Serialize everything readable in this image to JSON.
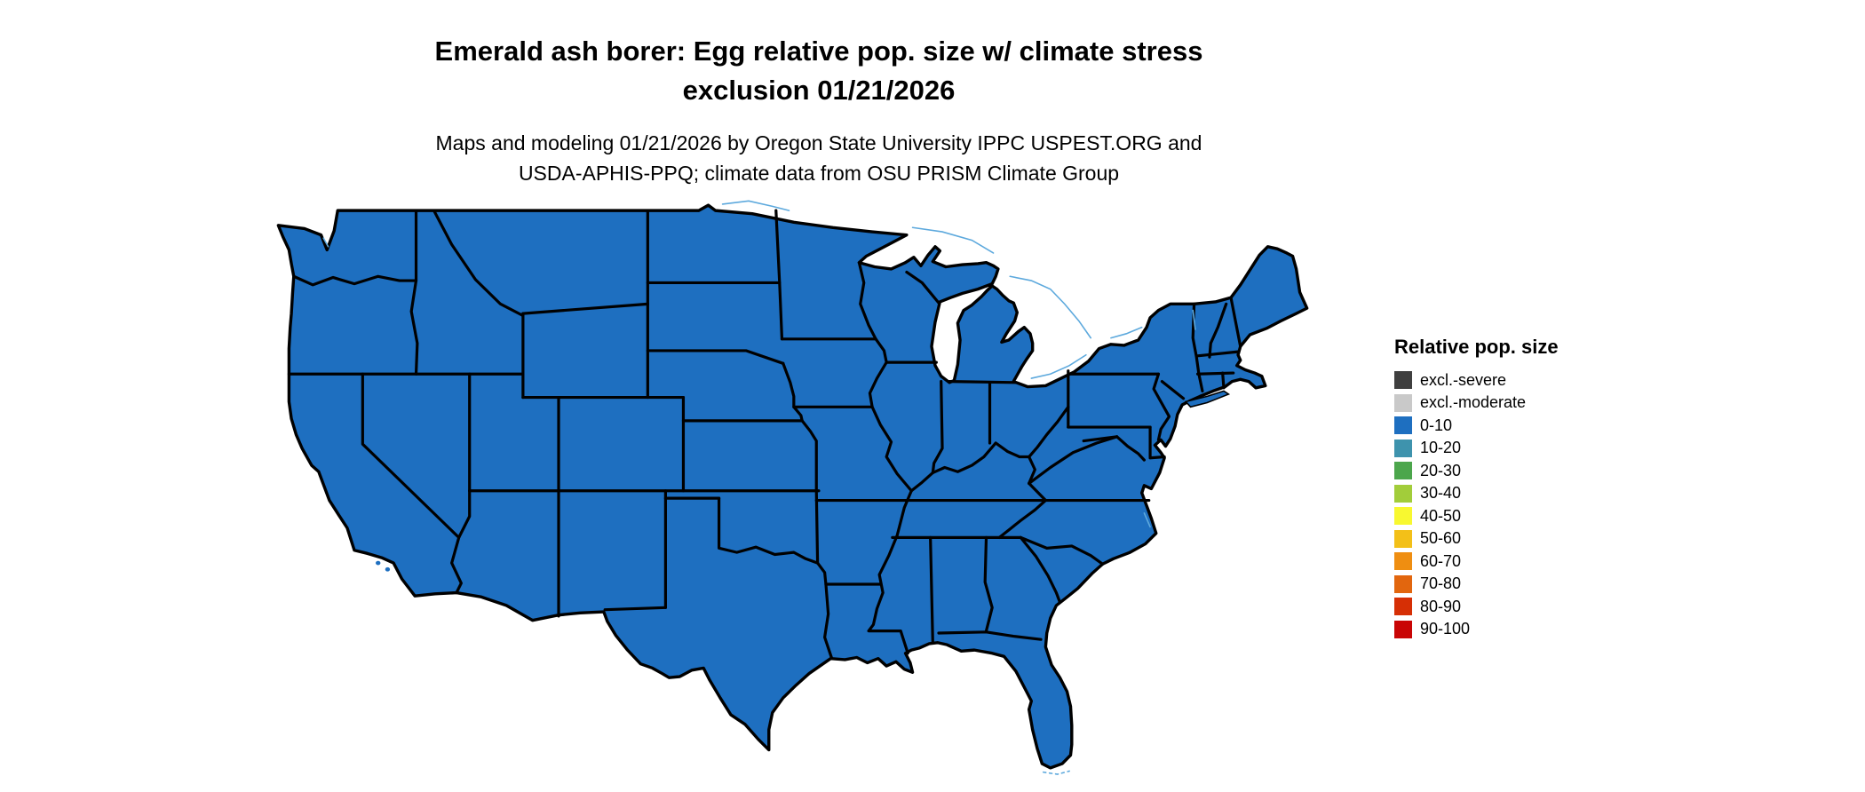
{
  "header": {
    "title_line1": "Emerald ash borer: Egg relative pop. size w/ climate stress",
    "title_line2": "exclusion 01/21/2026",
    "credits_line1": "Maps and modeling 01/21/2026 by Oregon State University IPPC USPEST.ORG and",
    "credits_line2": "USDA-APHIS-PPQ; climate data from OSU PRISM Climate Group"
  },
  "legend": {
    "title": "Relative pop. size",
    "items": [
      {
        "label": "excl.-severe",
        "color": "#3f3f3f"
      },
      {
        "label": "excl.-moderate",
        "color": "#c9c9c9"
      },
      {
        "label": "0-10",
        "color": "#1e6fc0"
      },
      {
        "label": "10-20",
        "color": "#3e93ad"
      },
      {
        "label": "20-30",
        "color": "#4ca64c"
      },
      {
        "label": "30-40",
        "color": "#a2cd3a"
      },
      {
        "label": "40-50",
        "color": "#f8f830"
      },
      {
        "label": "50-60",
        "color": "#f3c018"
      },
      {
        "label": "60-70",
        "color": "#ef8e11"
      },
      {
        "label": "70-80",
        "color": "#e2660e"
      },
      {
        "label": "80-90",
        "color": "#d62f05"
      },
      {
        "label": "90-100",
        "color": "#c90505"
      }
    ]
  },
  "map": {
    "region": "Contiguous United States",
    "all_states_class": "0-10",
    "fill_color": "#1e6fc0",
    "border_color": "#000000",
    "water_line_color": "#5da9dd",
    "background_color": "#ffffff"
  }
}
